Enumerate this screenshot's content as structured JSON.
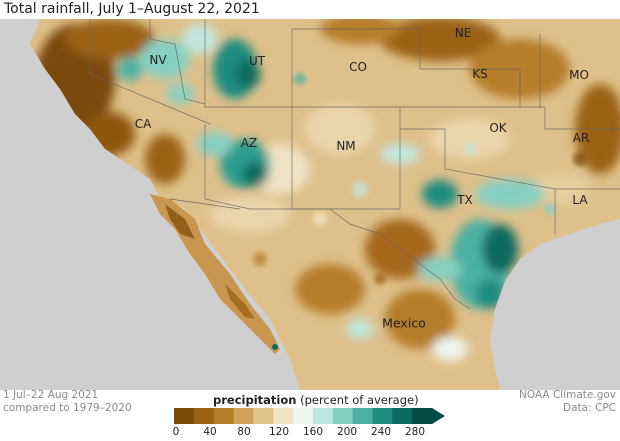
{
  "title": "Total rainfall, July 1–August 22, 2021",
  "labels": {
    "states": [
      "NV",
      "UT",
      "CO",
      "NE",
      "KS",
      "MO",
      "CA",
      "AZ",
      "NM",
      "OK",
      "AR",
      "TX",
      "LA"
    ],
    "country": "Mexico"
  },
  "footer": {
    "left_line1": "1 Jul–22 Aug 2021",
    "left_line2": "compared to 1979–2020",
    "right_line1": "NOAA Climate.gov",
    "right_line2": "Data: CPC"
  },
  "legend": {
    "title_bold": "precipitation",
    "title_rest": " (percent of average)",
    "ticks": [
      "0",
      "40",
      "80",
      "120",
      "160",
      "200",
      "240",
      "280"
    ],
    "colors": [
      "#7a4a06",
      "#9b6214",
      "#b67d2a",
      "#cfa25a",
      "#e2c48a",
      "#f2e4c0",
      "#eef6f1",
      "#bfe7df",
      "#86d0c3",
      "#4bb1a3",
      "#1f8c80",
      "#0b6b60",
      "#064b43"
    ]
  },
  "colors": {
    "ocean": "#cfcfcf",
    "land_base": "#dfc08a",
    "very_dry": "#7a4a08",
    "dry": "#a5681a",
    "wet": "#2a9d8f",
    "very_wet": "#0b6b60"
  }
}
